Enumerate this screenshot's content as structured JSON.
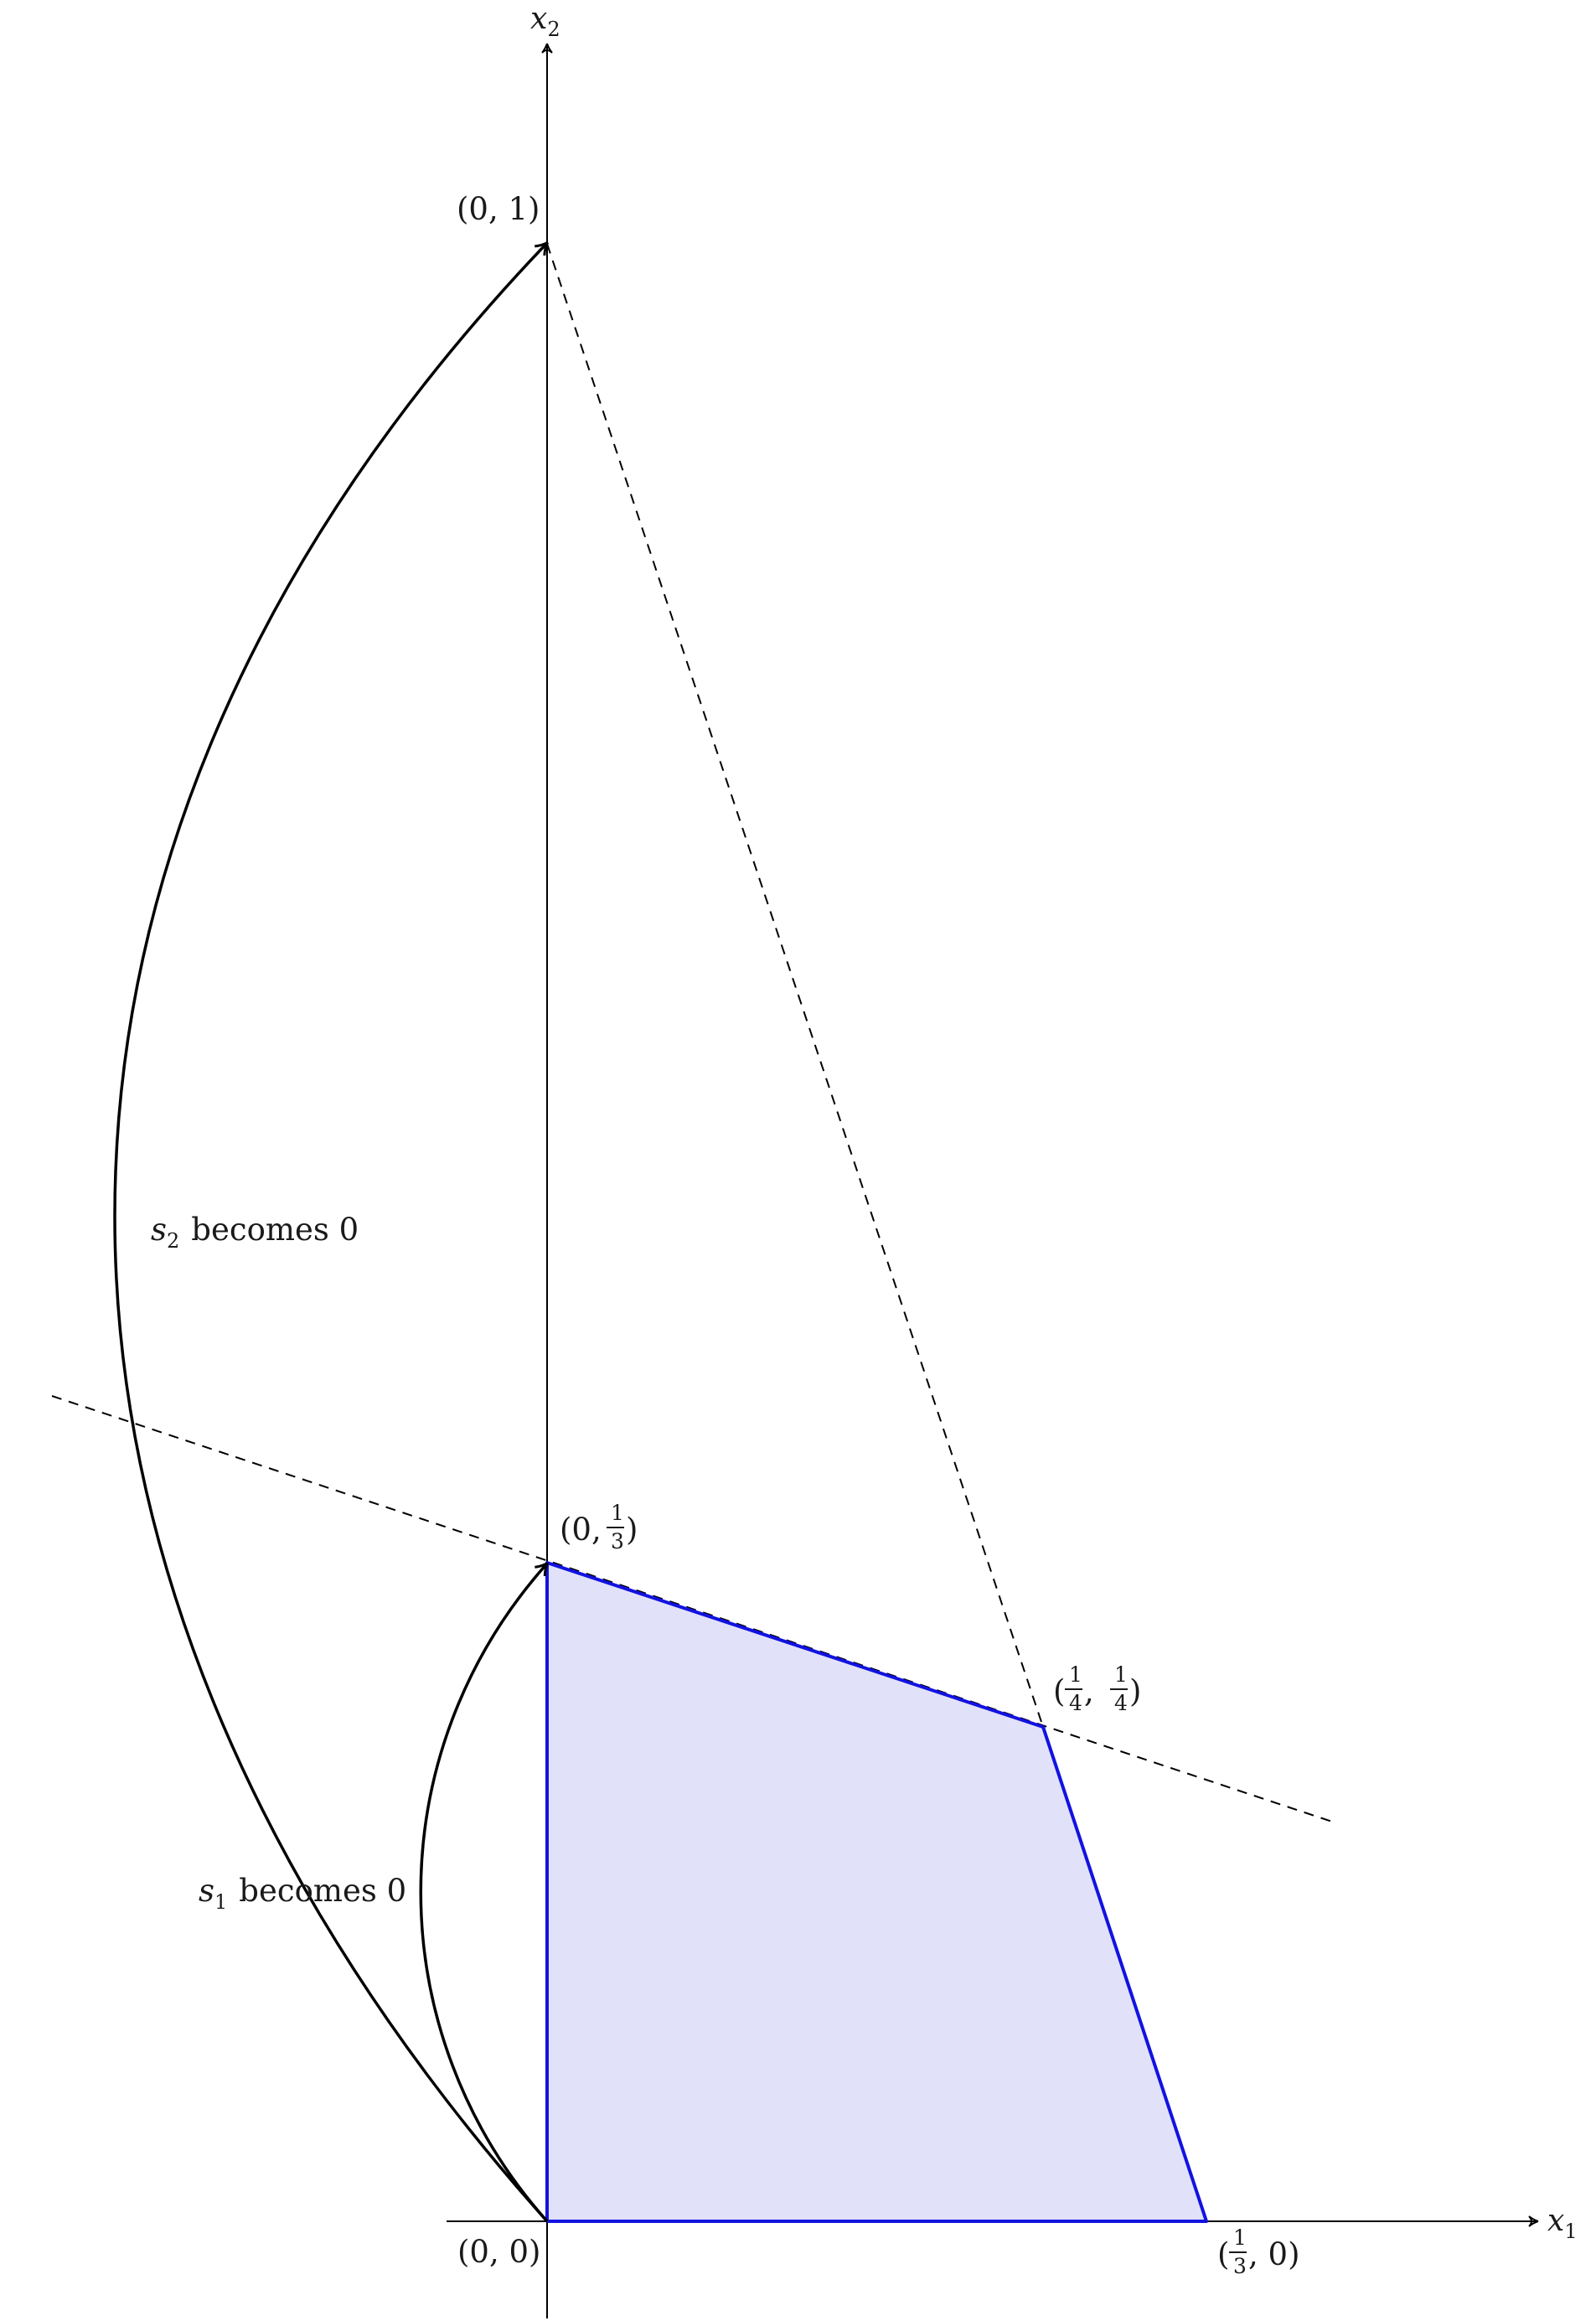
{
  "axes": {
    "x_label": "x",
    "x_sub": "1",
    "y_label": "x",
    "y_sub": "2"
  },
  "points": {
    "origin": "(0, 0)",
    "y_one": "(0, 1)",
    "y_third": {
      "open": "(0, ",
      "num": "1",
      "den": "3",
      "close": ")"
    },
    "corner": {
      "open": "(",
      "num1": "1",
      "den1": "4",
      "sep": ", ",
      "num2": "1",
      "den2": "4",
      "close": ")"
    },
    "x_third": {
      "open": "(",
      "num": "1",
      "den": "3",
      "close": ", 0)"
    }
  },
  "annotations": {
    "s2": {
      "var": "s",
      "sub": "2",
      "text": "becomes 0"
    },
    "s1": {
      "var": "s",
      "sub": "1",
      "text": "becomes 0"
    }
  },
  "colors": {
    "feasible_fill": "#e1e2fa",
    "feasible_edge": "#1212e0",
    "axis": "#000000",
    "dashed": "#000000"
  }
}
